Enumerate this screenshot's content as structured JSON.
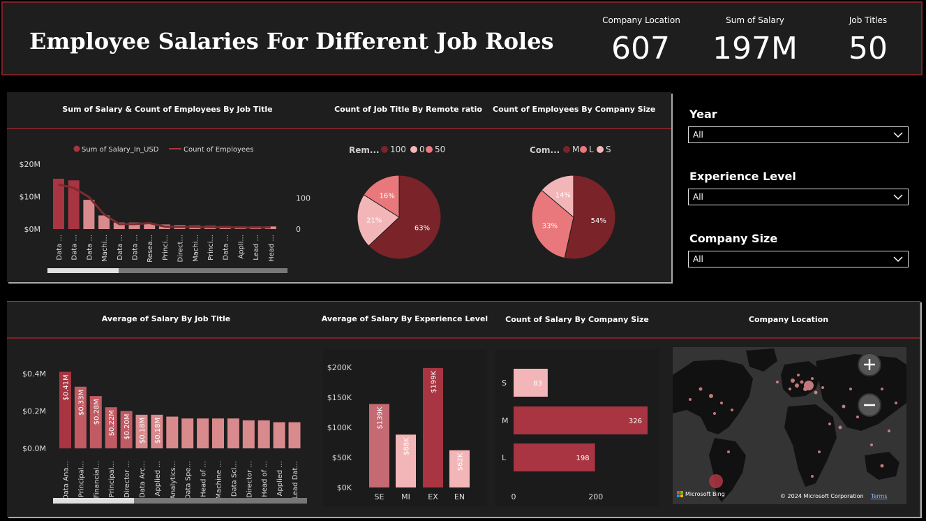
{
  "header": {
    "title": "Employee Salaries For Different Job Roles",
    "kpis": [
      {
        "label": "Company Location",
        "value": "607"
      },
      {
        "label": "Sum of Salary",
        "value": "197M"
      },
      {
        "label": "Job Titles",
        "value": "50"
      }
    ]
  },
  "slicers": [
    {
      "label": "Year",
      "value": "All"
    },
    {
      "label": "Experience Level",
      "value": "All"
    },
    {
      "label": "Company Size",
      "value": "All"
    }
  ],
  "panels": {
    "combo_title": "Sum of Salary & Count of Employees By Job Title",
    "remote_title": "Count of Job Title By Remote ratio",
    "size_pie_title": "Count of Employees By Company Size",
    "avg_job_title": "Average of Salary By Job Title",
    "avg_exp_title": "Average of Salary By Experience Level",
    "count_size_title": "Count of Salary By Company Size",
    "map_title": "Company Location"
  },
  "map": {
    "attribution": "© 2024 Microsoft Corporation",
    "terms": "Terms",
    "logo": "Microsoft Bing",
    "zoom_in": "+",
    "zoom_out": "−"
  },
  "colors": {
    "dark_red": "#7a2328",
    "red": "#a83541",
    "salmon": "#e9787c",
    "pink": "#f3b6b8",
    "mauve": "#d98a8d",
    "line": "#7c2b2e"
  },
  "chart_data": [
    {
      "type": "bar",
      "id": "combo",
      "legend": [
        "Sum of Salary_In_USD",
        "Count of Employees"
      ],
      "categories": [
        "Data ...",
        "Data ...",
        "Data ...",
        "Machi...",
        "Data ...",
        "Data ...",
        "Resea...",
        "Princi...",
        "Direct...",
        "Machi...",
        "Princi...",
        "Data ...",
        "Appli...",
        "Lead ...",
        "Head ..."
      ],
      "series": [
        {
          "name": "Sum of Salary_In_USD",
          "values": [
            15.5,
            15,
            9,
            4.2,
            2,
            2,
            1.8,
            1.4,
            1.2,
            1.1,
            1,
            0.9,
            0.8,
            0.8,
            0.8
          ]
        },
        {
          "name": "Count of Employees",
          "values": [
            143,
            132,
            103,
            47,
            16,
            16,
            19,
            8,
            7,
            7,
            6,
            6,
            5,
            5,
            5
          ]
        }
      ],
      "y_ticks": [
        "$20M",
        "$10M",
        "$0M"
      ],
      "y2_ticks": [
        "100",
        "0"
      ],
      "ylim": [
        0,
        20
      ],
      "y2lim": [
        0,
        200
      ]
    },
    {
      "type": "pie",
      "id": "remote",
      "legend_title": "Rem...",
      "labels": [
        "100",
        "0",
        "50"
      ],
      "values": [
        63,
        21,
        16
      ],
      "pct_labels": [
        "63%",
        "21%",
        "16%"
      ]
    },
    {
      "type": "pie",
      "id": "company_size",
      "legend_title": "Com...",
      "labels": [
        "M",
        "L",
        "S"
      ],
      "values": [
        54,
        33,
        14
      ],
      "pct_labels": [
        "54%",
        "33%",
        "14%"
      ]
    },
    {
      "type": "bar",
      "id": "avg_job",
      "categories": [
        "Data Ana...",
        "Principal...",
        "Financial...",
        "Principal...",
        "Director ...",
        "Data Arc...",
        "Applied ...",
        "Analytics...",
        "Data Spe...",
        "Head of ...",
        "Machine ...",
        "Data Sci...",
        "Director ...",
        "Head of ...",
        "Applied ...",
        "Lead Dat..."
      ],
      "values": [
        0.41,
        0.33,
        0.28,
        0.22,
        0.2,
        0.18,
        0.18,
        0.17,
        0.16,
        0.16,
        0.16,
        0.16,
        0.15,
        0.15,
        0.14,
        0.14
      ],
      "data_labels": [
        "$0.41M",
        "$0.33M",
        "$0.28M",
        "$0.22M",
        "$0.20M",
        "$0.18M",
        "$0.18M",
        "",
        "",
        "",
        "",
        "",
        "",
        "",
        "",
        ""
      ],
      "y_ticks": [
        "$0.4M",
        "$0.2M",
        "$0.0M"
      ],
      "ylim": [
        0,
        0.4
      ]
    },
    {
      "type": "bar",
      "id": "avg_exp",
      "categories": [
        "SE",
        "MI",
        "EX",
        "EN"
      ],
      "values": [
        139,
        88,
        199,
        62
      ],
      "data_labels": [
        "$139K",
        "$88K",
        "$199K",
        "$62K"
      ],
      "y_ticks": [
        "$200K",
        "$150K",
        "$100K",
        "$50K",
        "$0K"
      ],
      "ylim": [
        0,
        200
      ]
    },
    {
      "type": "bar",
      "id": "count_size",
      "orientation": "horizontal",
      "categories": [
        "S",
        "M",
        "L"
      ],
      "values": [
        83,
        326,
        198
      ],
      "data_labels": [
        "83",
        "326",
        "198"
      ],
      "x_ticks": [
        "0",
        "200"
      ],
      "xlim": [
        0,
        350
      ]
    }
  ]
}
